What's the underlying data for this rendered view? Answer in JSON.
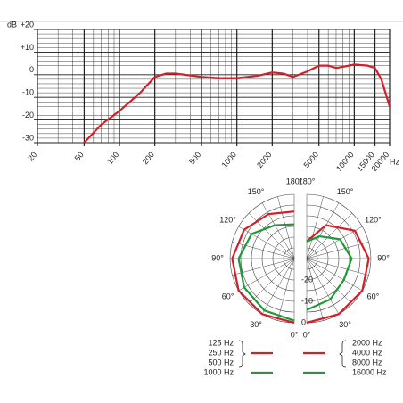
{
  "chart_data": [
    {
      "type": "line",
      "x_label": "Hz",
      "y_label": "dB",
      "x_scale": "log",
      "xlim": [
        20,
        20000
      ],
      "xticks": [
        20,
        50,
        100,
        200,
        500,
        1000,
        2000,
        5000,
        10000,
        15000,
        20000
      ],
      "ylim": [
        -30,
        20
      ],
      "yticks": [
        {
          "value": 20,
          "label": "+20"
        },
        {
          "value": 10,
          "label": "+10"
        },
        0,
        -10,
        -20,
        -30
      ],
      "minor_ystep": 2,
      "grid": true,
      "series": [
        {
          "color": "#d0202a",
          "x": [
            50,
            70,
            100,
            150,
            200,
            250,
            300,
            500,
            700,
            1000,
            1500,
            2000,
            2500,
            3000,
            4000,
            5000,
            6000,
            7000,
            8000,
            10000,
            13000,
            15000,
            17000,
            20000
          ],
          "values": [
            -30,
            -22,
            -16,
            -8,
            -1,
            0.5,
            0.5,
            -1,
            -1.5,
            -1.5,
            -0.5,
            1,
            0.5,
            -1,
            1.5,
            4,
            4,
            3,
            3.5,
            4.5,
            4,
            3,
            -2,
            -14
          ]
        }
      ]
    },
    {
      "type": "polar",
      "rlim": [
        -30,
        0
      ],
      "rticks": [
        -20,
        -10,
        0
      ],
      "angle_ticks": [
        {
          "value": 0,
          "label": "0°"
        },
        {
          "value": 30,
          "label": "30°"
        },
        {
          "value": 60,
          "label": "60°"
        },
        {
          "value": 90,
          "label": "90°"
        },
        {
          "value": 120,
          "label": "120°"
        },
        {
          "value": 150,
          "label": "150°"
        },
        {
          "value": 180,
          "label": "180°"
        }
      ],
      "series": [
        {
          "side": "left",
          "color": "#d0202a",
          "labels": [
            "125 Hz",
            "250 Hz",
            "500 Hz"
          ],
          "angles": [
            0,
            30,
            60,
            90,
            120,
            150,
            180
          ],
          "values": [
            0,
            0,
            0,
            -1,
            -3,
            -6,
            -8
          ]
        },
        {
          "side": "left",
          "color": "#1e9a3a",
          "labels": [
            "1000 Hz"
          ],
          "angles": [
            0,
            30,
            60,
            90,
            120,
            150,
            180
          ],
          "values": [
            -1,
            -2,
            -3,
            -4,
            -7,
            -12,
            -14
          ]
        },
        {
          "side": "right",
          "color": "#d0202a",
          "labels": [
            "2000 Hz",
            "4000 Hz",
            "8000 Hz"
          ],
          "angles": [
            0,
            30,
            60,
            90,
            120,
            150,
            180
          ],
          "values": [
            0,
            0,
            0,
            -1,
            -4,
            -12,
            -22
          ]
        },
        {
          "side": "right",
          "color": "#1e9a3a",
          "labels": [
            "16000 Hz"
          ],
          "angles": [
            0,
            30,
            60,
            90,
            120,
            150,
            180
          ],
          "values": [
            -6,
            -8,
            -10,
            -9,
            -12,
            -18,
            -22
          ]
        }
      ]
    }
  ]
}
